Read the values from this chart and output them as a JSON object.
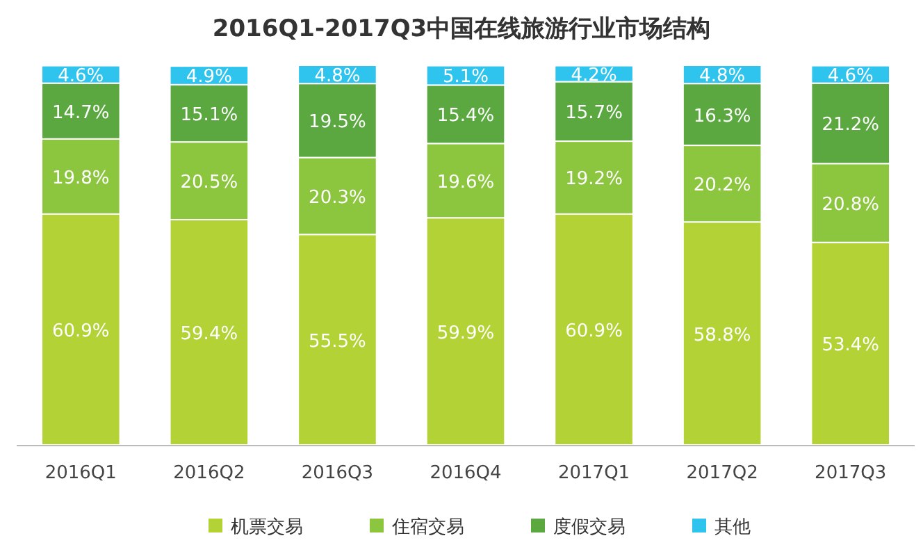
{
  "chart_data": {
    "type": "bar",
    "stacked": true,
    "title": "2016Q1-2017Q3中国在线旅游行业市场结构",
    "categories": [
      "2016Q1",
      "2016Q2",
      "2016Q3",
      "2016Q4",
      "2017Q1",
      "2017Q2",
      "2017Q3"
    ],
    "series": [
      {
        "name": "机票交易",
        "color": "#b2d235",
        "values": [
          60.9,
          59.4,
          55.5,
          59.9,
          60.9,
          58.8,
          53.4
        ],
        "value_labels": [
          "60.9%",
          "59.4%",
          "55.5%",
          "59.9%",
          "60.9%",
          "58.8%",
          "53.4%"
        ]
      },
      {
        "name": "住宿交易",
        "color": "#8cc63e",
        "values": [
          19.8,
          20.5,
          20.3,
          19.6,
          19.2,
          20.2,
          20.8
        ],
        "value_labels": [
          "19.8%",
          "20.5%",
          "20.3%",
          "19.6%",
          "19.2%",
          "20.2%",
          "20.8%"
        ]
      },
      {
        "name": "度假交易",
        "color": "#5ba840",
        "values": [
          14.7,
          15.1,
          19.5,
          15.4,
          15.7,
          16.3,
          21.2
        ],
        "value_labels": [
          "14.7%",
          "15.1%",
          "19.5%",
          "15.4%",
          "15.7%",
          "16.3%",
          "21.2%"
        ]
      },
      {
        "name": "其他",
        "color": "#2fc4ee",
        "values": [
          4.6,
          4.9,
          4.8,
          5.1,
          4.2,
          4.8,
          4.6
        ],
        "value_labels": [
          "4.6%",
          "4.9%",
          "4.8%",
          "5.1%",
          "4.2%",
          "4.8%",
          "4.6%"
        ]
      }
    ],
    "legend": "bottom"
  }
}
